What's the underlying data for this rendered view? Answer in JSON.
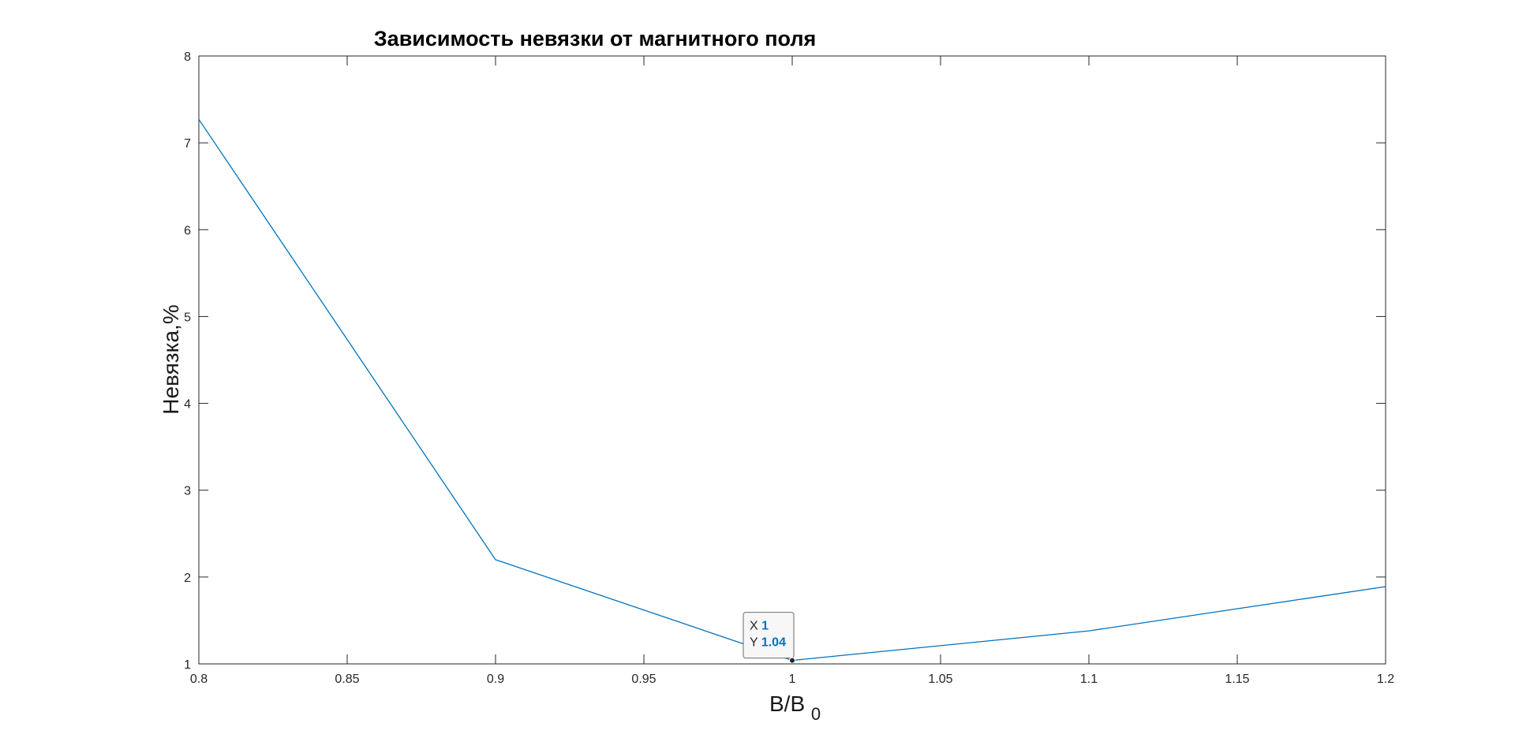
{
  "chart_data": {
    "type": "line",
    "title": "Зависимость невязки от магнитного поля",
    "xlabel_main": "B/B",
    "xlabel_sub": "0",
    "ylabel": "Невязка,%",
    "xlim": [
      0.8,
      1.2
    ],
    "ylim": [
      1,
      8
    ],
    "xticks": [
      "0.8",
      "0.85",
      "0.9",
      "0.95",
      "1",
      "1.05",
      "1.1",
      "1.15",
      "1.2"
    ],
    "yticks": [
      "1",
      "2",
      "3",
      "4",
      "5",
      "6",
      "7",
      "8"
    ],
    "grid": false,
    "series": [
      {
        "color": "#0072BD",
        "x": [
          0.8,
          0.9,
          1.0,
          1.1,
          1.2
        ],
        "y": [
          7.27,
          2.2,
          1.04,
          1.38,
          1.89
        ]
      }
    ],
    "datatip": {
      "x_label": "X",
      "x_value": "1",
      "y_label": "Y",
      "y_value": "1.04",
      "value_color": "#0072BD"
    }
  }
}
